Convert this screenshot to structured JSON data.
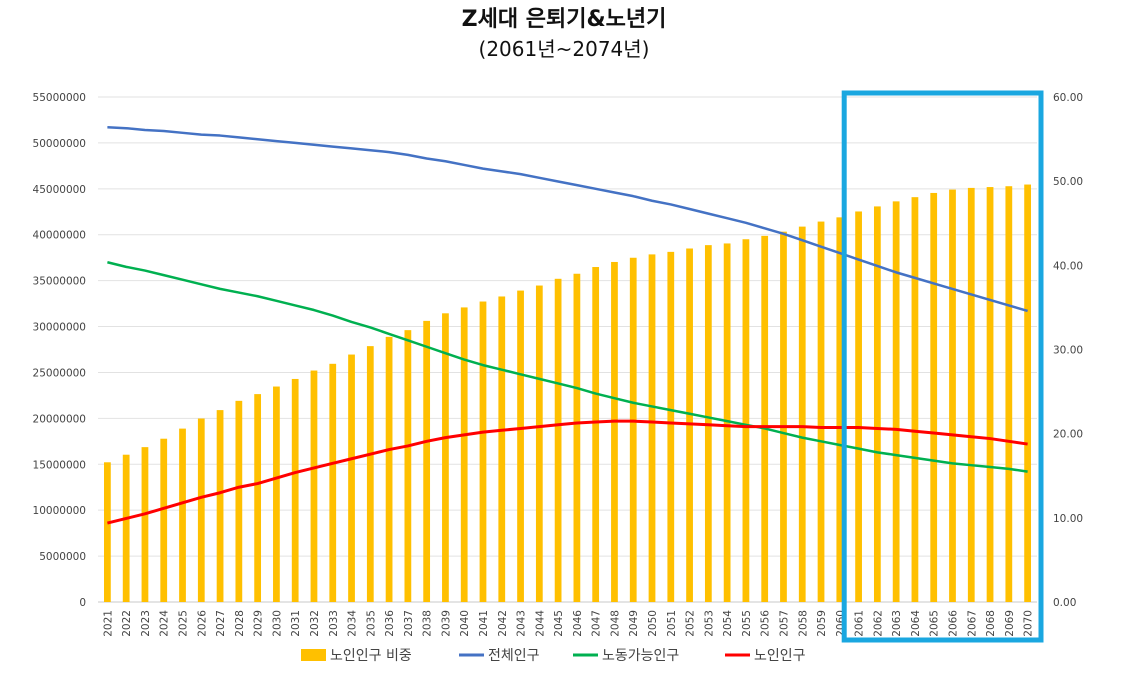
{
  "chart_data": {
    "type": "bar+line",
    "title": "Z세대 은퇴기&노년기",
    "subtitle": "(2061년~2074년)",
    "categories": [
      "2021",
      "2022",
      "2023",
      "2024",
      "2025",
      "2026",
      "2027",
      "2028",
      "2029",
      "2030",
      "2031",
      "2032",
      "2033",
      "2034",
      "2035",
      "2036",
      "2037",
      "2038",
      "2039",
      "2040",
      "2041",
      "2042",
      "2043",
      "2044",
      "2045",
      "2046",
      "2047",
      "2048",
      "2049",
      "2050",
      "2051",
      "2052",
      "2053",
      "2054",
      "2055",
      "2056",
      "2057",
      "2058",
      "2059",
      "2060",
      "2061",
      "2062",
      "2063",
      "2064",
      "2065",
      "2066",
      "2067",
      "2068",
      "2069",
      "2070"
    ],
    "y_left": {
      "min": 0,
      "max": 55000000,
      "step": 5000000,
      "ticks": [
        "0",
        "5000000",
        "10000000",
        "15000000",
        "20000000",
        "25000000",
        "30000000",
        "35000000",
        "40000000",
        "45000000",
        "50000000",
        "55000000"
      ]
    },
    "y_right": {
      "min": 0,
      "max": 60,
      "step": 10,
      "ticks": [
        "0.00",
        "10.00",
        "20.00",
        "30.00",
        "40.00",
        "50.00",
        "60.00"
      ]
    },
    "grid": true,
    "legend_position": "bottom",
    "highlight": {
      "from": "2061",
      "to": "2070",
      "color": "#1AA7E0"
    },
    "bar_series": {
      "name": "노인인구 비중",
      "axis": "right",
      "color": "#FFC000",
      "values": [
        16.6,
        17.5,
        18.4,
        19.4,
        20.6,
        21.8,
        22.8,
        23.9,
        24.7,
        25.6,
        26.5,
        27.5,
        28.3,
        29.4,
        30.4,
        31.5,
        32.3,
        33.4,
        34.3,
        35.0,
        35.7,
        36.3,
        37.0,
        37.6,
        38.4,
        39.0,
        39.8,
        40.4,
        40.9,
        41.3,
        41.6,
        42.0,
        42.4,
        42.6,
        43.1,
        43.5,
        44.0,
        44.6,
        45.2,
        45.7,
        46.4,
        47.0,
        47.6,
        48.1,
        48.6,
        49.0,
        49.2,
        49.3,
        49.4,
        49.6
      ]
    },
    "line_series": [
      {
        "name": "전체인구",
        "axis": "left",
        "color": "#4472C4",
        "values": [
          51700000,
          51600000,
          51400000,
          51300000,
          51100000,
          50900000,
          50800000,
          50600000,
          50400000,
          50200000,
          50000000,
          49800000,
          49600000,
          49400000,
          49200000,
          49000000,
          48700000,
          48300000,
          48000000,
          47600000,
          47200000,
          46900000,
          46600000,
          46200000,
          45800000,
          45400000,
          45000000,
          44600000,
          44200000,
          43700000,
          43300000,
          42800000,
          42300000,
          41800000,
          41300000,
          40700000,
          40100000,
          39400000,
          38700000,
          38000000,
          37300000,
          36600000,
          35900000,
          35300000,
          34700000,
          34100000,
          33500000,
          32900000,
          32300000,
          31700000
        ]
      },
      {
        "name": "노동가능인구",
        "axis": "left",
        "color": "#00B050",
        "values": [
          37000000,
          36500000,
          36100000,
          35600000,
          35100000,
          34600000,
          34100000,
          33700000,
          33300000,
          32800000,
          32300000,
          31800000,
          31200000,
          30500000,
          29900000,
          29200000,
          28500000,
          27800000,
          27100000,
          26400000,
          25800000,
          25300000,
          24800000,
          24300000,
          23800000,
          23300000,
          22700000,
          22200000,
          21700000,
          21300000,
          20900000,
          20500000,
          20100000,
          19700000,
          19300000,
          18900000,
          18400000,
          17900000,
          17500000,
          17100000,
          16700000,
          16300000,
          16000000,
          15700000,
          15400000,
          15100000,
          14900000,
          14700000,
          14500000,
          14200000
        ]
      },
      {
        "name": "노인인구",
        "axis": "left",
        "color": "#FF0000",
        "values": [
          8600000,
          9100000,
          9600000,
          10200000,
          10800000,
          11400000,
          11900000,
          12500000,
          12900000,
          13500000,
          14100000,
          14600000,
          15100000,
          15600000,
          16100000,
          16600000,
          17000000,
          17500000,
          17900000,
          18200000,
          18500000,
          18700000,
          18900000,
          19100000,
          19300000,
          19500000,
          19600000,
          19700000,
          19700000,
          19600000,
          19500000,
          19400000,
          19300000,
          19200000,
          19100000,
          19100000,
          19100000,
          19100000,
          19000000,
          19000000,
          19000000,
          18900000,
          18800000,
          18600000,
          18400000,
          18200000,
          18000000,
          17800000,
          17500000,
          17200000
        ]
      }
    ]
  }
}
